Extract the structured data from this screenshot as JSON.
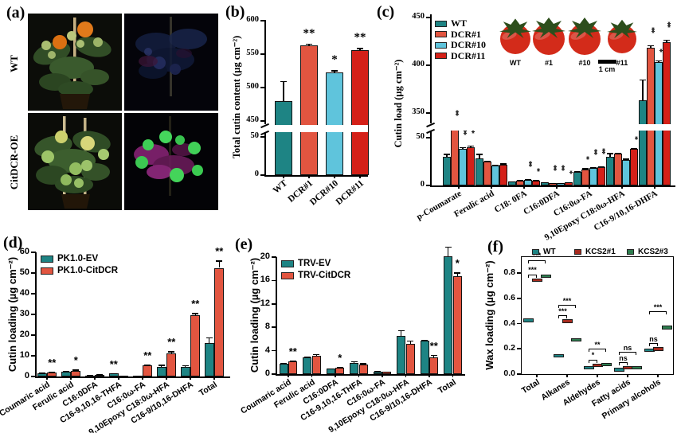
{
  "figure": {
    "panels": {
      "a": "(a)",
      "b": "(b)",
      "c": "(c)",
      "d": "(d)",
      "e": "(e)",
      "f": "(f)"
    }
  },
  "colors": {
    "teal": "#1E8484",
    "salmon": "#E25540",
    "lightblue": "#5FC4DC",
    "red": "#D42018",
    "kcs1": "#A62A1E",
    "kcs3": "#2E7D4F"
  },
  "panel_a": {
    "row_labels": [
      "WT",
      "CitDCR-OE"
    ]
  },
  "chart_data": [
    {
      "id": "b",
      "type": "bar",
      "ylabel": "Total cutin content (µg cm⁻²)",
      "categories": [
        "WT",
        "DCR#1",
        "DCR#10",
        "DCR#11"
      ],
      "values": [
        480,
        563,
        523,
        556
      ],
      "errors": [
        30,
        3,
        3,
        3
      ],
      "sig": [
        "",
        "**",
        "*",
        "**"
      ],
      "bar_colors": [
        "teal",
        "salmon",
        "lightblue",
        "red"
      ],
      "yticks_lower": [
        "0",
        "50"
      ],
      "yticks_upper": [
        "450",
        "500",
        "550",
        "600"
      ],
      "axis_break": [
        50,
        450
      ]
    },
    {
      "id": "c",
      "type": "grouped-bar",
      "ylabel": "Cutin load (µg cm⁻²)",
      "categories": [
        "p-Coumarate",
        "Ferulic acid",
        "C18: 0FA",
        "C16:0DFA",
        "C16:0ω-FA",
        "9,10Epoxy C18:0ω-HFA",
        "C16-9/10,16-DHFA"
      ],
      "series": [
        {
          "name": "WT",
          "color": "teal",
          "values": [
            30,
            28,
            4,
            3,
            14,
            30,
            363
          ],
          "errors": [
            3,
            5,
            0.5,
            0.4,
            1,
            4,
            22
          ],
          "sig": [
            "",
            "",
            "",
            "",
            "",
            "",
            ""
          ]
        },
        {
          "name": "DCR#1",
          "color": "salmon",
          "values": [
            58,
            25,
            5,
            2.5,
            17,
            33,
            418
          ],
          "errors": [
            2,
            1,
            0.5,
            0.3,
            1,
            1,
            3
          ],
          "sig": [
            "**",
            "",
            "",
            "**",
            "*",
            "",
            "**"
          ]
        },
        {
          "name": "DCR#10",
          "color": "lightblue",
          "values": [
            38,
            21,
            6,
            2.5,
            18,
            27,
            403
          ],
          "errors": [
            2,
            1,
            0.5,
            0.3,
            1,
            1,
            2
          ],
          "sig": [
            "**",
            "",
            "**",
            "**",
            "**",
            "",
            "*"
          ]
        },
        {
          "name": "DCR#11",
          "color": "red",
          "values": [
            40,
            22,
            5,
            3,
            19,
            38,
            424
          ],
          "errors": [
            2,
            1,
            0.5,
            0.3,
            1,
            1,
            3
          ],
          "sig": [
            "**",
            "",
            "*",
            "*",
            "**",
            "*",
            "**"
          ]
        }
      ],
      "yticks_lower": [
        "0",
        "50"
      ],
      "yticks_upper": [
        "350",
        "400",
        "450"
      ],
      "axis_break": [
        50,
        350
      ],
      "inset": {
        "fruit_labels": [
          "WT",
          "#1",
          "#10",
          "#11"
        ],
        "scale_label": "1 cm"
      }
    },
    {
      "id": "d",
      "type": "grouped-bar",
      "ylabel": "Cutin loading (µg cm⁻²)",
      "categories": [
        "Coumaric acid",
        "Ferulic acid",
        "C16:0DFA",
        "C16-9,10,16-THFA",
        "C16:0ω-FA",
        "9,10Epoxy C18:0ω-HFA",
        "C16-9/10,16-DHFA",
        "Total"
      ],
      "series": [
        {
          "name": "PK1.0-EV",
          "color": "teal",
          "values": [
            1.5,
            2.2,
            0.5,
            1.5,
            0.2,
            4.8,
            4.5,
            16
          ],
          "errors": [
            0.3,
            0.5,
            0.1,
            0.2,
            0.05,
            0.8,
            1.0,
            3
          ],
          "sig": [
            "",
            "",
            "",
            "**",
            "",
            "",
            "",
            ""
          ]
        },
        {
          "name": "PK1.0-CitDCR",
          "color": "salmon",
          "values": [
            2.0,
            2.8,
            0.9,
            0.3,
            5.5,
            11,
            29.5,
            52.5
          ],
          "errors": [
            0.3,
            0.5,
            0.15,
            0.1,
            0.3,
            1.2,
            1.2,
            3.5
          ],
          "sig": [
            "**",
            "*",
            "",
            "",
            "**",
            "**",
            "**",
            "**"
          ]
        }
      ],
      "yticks": [
        "0",
        "10",
        "20",
        "30",
        "40",
        "50",
        "60"
      ]
    },
    {
      "id": "e",
      "type": "grouped-bar",
      "ylabel": "Cutin loading (µg cm⁻²)",
      "categories": [
        "Coumaric acid",
        "Ferulic acid",
        "C16:0DFA",
        "C16-9,10,16-THFA",
        "C16:0ω-FA",
        "9,10Epoxy C18:0ω-HFA",
        "C16-9/10,16-DHFA",
        "Total"
      ],
      "series": [
        {
          "name": "TRV-EV",
          "color": "teal",
          "values": [
            1.8,
            2.8,
            0.9,
            1.9,
            0.45,
            6.5,
            5.7,
            20.2
          ],
          "errors": [
            0.1,
            0.2,
            0.05,
            0.3,
            0.1,
            1.0,
            0.15,
            1.6
          ],
          "sig": [
            "",
            "",
            "",
            "",
            "",
            "",
            "",
            ""
          ]
        },
        {
          "name": "TRV-CitDCR",
          "color": "salmon",
          "values": [
            2.2,
            3.1,
            1.1,
            1.7,
            0.35,
            5.2,
            2.9,
            16.8
          ],
          "errors": [
            0.15,
            0.3,
            0.1,
            0.15,
            0.05,
            0.5,
            0.4,
            0.6
          ],
          "sig": [
            "**",
            "",
            "*",
            "",
            "",
            "",
            "**",
            "*"
          ]
        }
      ],
      "yticks": [
        "0",
        "4",
        "8",
        "12",
        "16",
        "20"
      ]
    },
    {
      "id": "f",
      "type": "box",
      "ylabel": "Wax loading (µg cm⁻²)",
      "categories": [
        "Total",
        "Alkanes",
        "Aldehydes",
        "Fatty acids",
        "Primary alcohols"
      ],
      "series": [
        {
          "name": "WT",
          "color": "teal",
          "values": [
            0.425,
            0.145,
            0.05,
            0.035,
            0.19
          ]
        },
        {
          "name": "KCS2#1",
          "color": "kcs1",
          "values": [
            0.745,
            0.42,
            0.07,
            0.05,
            0.2
          ]
        },
        {
          "name": "KCS2#3",
          "color": "kcs3",
          "values": [
            0.775,
            0.27,
            0.075,
            0.05,
            0.37
          ]
        }
      ],
      "sig_lower": [
        "***",
        "***",
        "*",
        "ns",
        "ns"
      ],
      "sig_upper": [
        "***",
        "***",
        "**",
        "ns",
        "***"
      ],
      "yticks": [
        "0.0",
        "0.2",
        "0.4",
        "0.6",
        "0.8"
      ]
    }
  ]
}
